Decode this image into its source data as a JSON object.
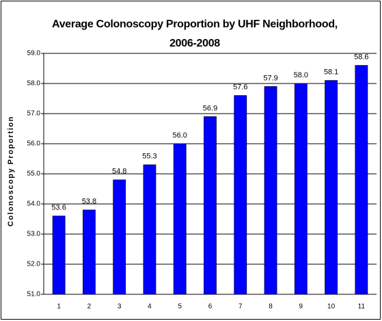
{
  "chart_data": {
    "type": "bar",
    "title": "Average Colonoscopy Proportion by UHF Neighborhood, 2006-2008",
    "y_label": "Colonoscopy Proportion",
    "categories": [
      "1",
      "2",
      "3",
      "4",
      "5",
      "6",
      "7",
      "8",
      "9",
      "10",
      "11"
    ],
    "values": [
      53.6,
      53.8,
      54.8,
      55.3,
      56.0,
      56.9,
      57.6,
      57.9,
      58.0,
      58.1,
      58.6
    ],
    "value_labels": [
      "53.6",
      "53.8",
      "54.8",
      "55.3",
      "56.0",
      "56.9",
      "57.6",
      "57.9",
      "58.0",
      "58.1",
      "58.6"
    ],
    "color": "#0000ff",
    "ylim": [
      51,
      59
    ],
    "yticks": [
      {
        "value": 51,
        "label": "51.0"
      },
      {
        "value": 52,
        "label": "52.0"
      },
      {
        "value": 53,
        "label": "53.0"
      },
      {
        "value": 54,
        "label": "54.0"
      },
      {
        "value": 55,
        "label": "55.0"
      },
      {
        "value": 56,
        "label": "56.0"
      },
      {
        "value": 57,
        "label": "57.0"
      },
      {
        "value": 58,
        "label": "58.0"
      },
      {
        "value": 59,
        "label": "59.0"
      }
    ],
    "grid": true
  }
}
